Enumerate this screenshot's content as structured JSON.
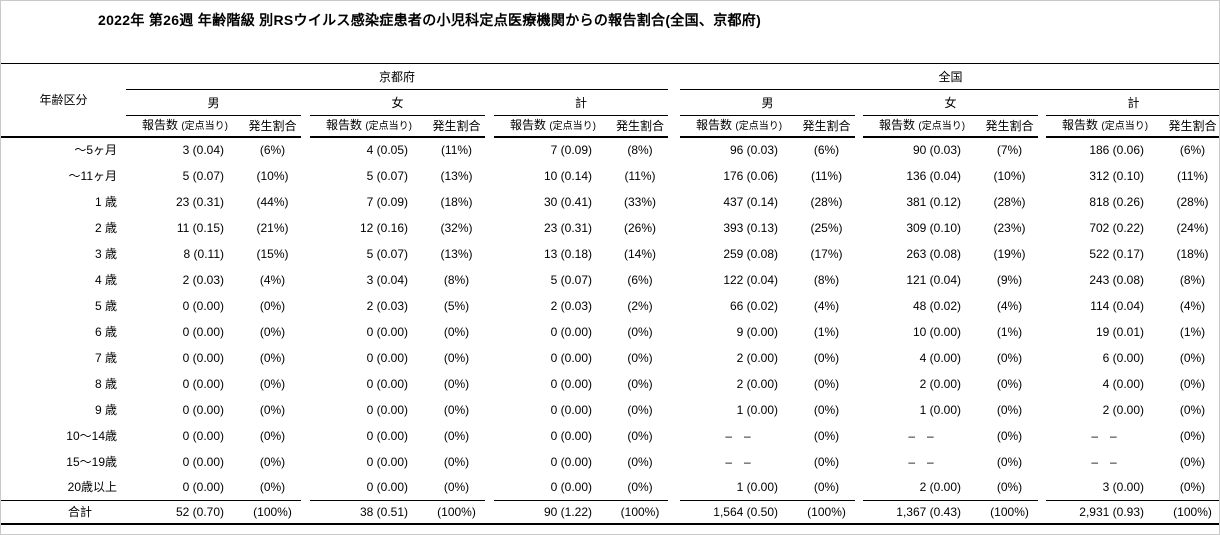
{
  "title": "2022年 第26週 年齢階級 別RSウイルス感染症患者の小児科定点医療機関からの報告割合(全国、京都府)",
  "table": {
    "age_header": "年齢区分",
    "regions": [
      "京都府",
      "全国"
    ],
    "sex_headers": [
      "男",
      "女",
      "計"
    ],
    "col_headers": {
      "reports": "報告数",
      "reports_sub": "(定点当り)",
      "ratio": "発生割合"
    },
    "rows": [
      {
        "age": "～5ヶ月",
        "cells": [
          [
            "3 (0.04)",
            "(6%)"
          ],
          [
            "4 (0.05)",
            "(11%)"
          ],
          [
            "7 (0.09)",
            "(8%)"
          ],
          [
            "96 (0.03)",
            "(6%)"
          ],
          [
            "90 (0.03)",
            "(7%)"
          ],
          [
            "186 (0.06)",
            "(6%)"
          ]
        ]
      },
      {
        "age": "～11ヶ月",
        "cells": [
          [
            "5 (0.07)",
            "(10%)"
          ],
          [
            "5 (0.07)",
            "(13%)"
          ],
          [
            "10 (0.14)",
            "(11%)"
          ],
          [
            "176 (0.06)",
            "(11%)"
          ],
          [
            "136 (0.04)",
            "(10%)"
          ],
          [
            "312 (0.10)",
            "(11%)"
          ]
        ]
      },
      {
        "age": "1 歳",
        "cells": [
          [
            "23 (0.31)",
            "(44%)"
          ],
          [
            "7 (0.09)",
            "(18%)"
          ],
          [
            "30 (0.41)",
            "(33%)"
          ],
          [
            "437 (0.14)",
            "(28%)"
          ],
          [
            "381 (0.12)",
            "(28%)"
          ],
          [
            "818 (0.26)",
            "(28%)"
          ]
        ]
      },
      {
        "age": "2 歳",
        "cells": [
          [
            "11 (0.15)",
            "(21%)"
          ],
          [
            "12 (0.16)",
            "(32%)"
          ],
          [
            "23 (0.31)",
            "(26%)"
          ],
          [
            "393 (0.13)",
            "(25%)"
          ],
          [
            "309 (0.10)",
            "(23%)"
          ],
          [
            "702 (0.22)",
            "(24%)"
          ]
        ]
      },
      {
        "age": "3 歳",
        "cells": [
          [
            "8 (0.11)",
            "(15%)"
          ],
          [
            "5 (0.07)",
            "(13%)"
          ],
          [
            "13 (0.18)",
            "(14%)"
          ],
          [
            "259 (0.08)",
            "(17%)"
          ],
          [
            "263 (0.08)",
            "(19%)"
          ],
          [
            "522 (0.17)",
            "(18%)"
          ]
        ]
      },
      {
        "age": "4 歳",
        "cells": [
          [
            "2 (0.03)",
            "(4%)"
          ],
          [
            "3 (0.04)",
            "(8%)"
          ],
          [
            "5 (0.07)",
            "(6%)"
          ],
          [
            "122 (0.04)",
            "(8%)"
          ],
          [
            "121 (0.04)",
            "(9%)"
          ],
          [
            "243 (0.08)",
            "(8%)"
          ]
        ]
      },
      {
        "age": "5 歳",
        "cells": [
          [
            "0 (0.00)",
            "(0%)"
          ],
          [
            "2 (0.03)",
            "(5%)"
          ],
          [
            "2 (0.03)",
            "(2%)"
          ],
          [
            "66 (0.02)",
            "(4%)"
          ],
          [
            "48 (0.02)",
            "(4%)"
          ],
          [
            "114 (0.04)",
            "(4%)"
          ]
        ]
      },
      {
        "age": "6 歳",
        "cells": [
          [
            "0 (0.00)",
            "(0%)"
          ],
          [
            "0 (0.00)",
            "(0%)"
          ],
          [
            "0 (0.00)",
            "(0%)"
          ],
          [
            "9 (0.00)",
            "(1%)"
          ],
          [
            "10 (0.00)",
            "(1%)"
          ],
          [
            "19 (0.01)",
            "(1%)"
          ]
        ]
      },
      {
        "age": "7 歳",
        "cells": [
          [
            "0 (0.00)",
            "(0%)"
          ],
          [
            "0 (0.00)",
            "(0%)"
          ],
          [
            "0 (0.00)",
            "(0%)"
          ],
          [
            "2 (0.00)",
            "(0%)"
          ],
          [
            "4 (0.00)",
            "(0%)"
          ],
          [
            "6 (0.00)",
            "(0%)"
          ]
        ]
      },
      {
        "age": "8 歳",
        "cells": [
          [
            "0 (0.00)",
            "(0%)"
          ],
          [
            "0 (0.00)",
            "(0%)"
          ],
          [
            "0 (0.00)",
            "(0%)"
          ],
          [
            "2 (0.00)",
            "(0%)"
          ],
          [
            "2 (0.00)",
            "(0%)"
          ],
          [
            "4 (0.00)",
            "(0%)"
          ]
        ]
      },
      {
        "age": "9 歳",
        "cells": [
          [
            "0 (0.00)",
            "(0%)"
          ],
          [
            "0 (0.00)",
            "(0%)"
          ],
          [
            "0 (0.00)",
            "(0%)"
          ],
          [
            "1 (0.00)",
            "(0%)"
          ],
          [
            "1 (0.00)",
            "(0%)"
          ],
          [
            "2 (0.00)",
            "(0%)"
          ]
        ]
      },
      {
        "age": "10～14歳",
        "cells": [
          [
            "0 (0.00)",
            "(0%)"
          ],
          [
            "0 (0.00)",
            "(0%)"
          ],
          [
            "0 (0.00)",
            "(0%)"
          ],
          [
            "–　–",
            "(0%)"
          ],
          [
            "–　–",
            "(0%)"
          ],
          [
            "–　–",
            "(0%)"
          ]
        ]
      },
      {
        "age": "15～19歳",
        "cells": [
          [
            "0 (0.00)",
            "(0%)"
          ],
          [
            "0 (0.00)",
            "(0%)"
          ],
          [
            "0 (0.00)",
            "(0%)"
          ],
          [
            "–　–",
            "(0%)"
          ],
          [
            "–　–",
            "(0%)"
          ],
          [
            "–　–",
            "(0%)"
          ]
        ]
      },
      {
        "age": "20歳以上",
        "cells": [
          [
            "0 (0.00)",
            "(0%)"
          ],
          [
            "0 (0.00)",
            "(0%)"
          ],
          [
            "0 (0.00)",
            "(0%)"
          ],
          [
            "1 (0.00)",
            "(0%)"
          ],
          [
            "2 (0.00)",
            "(0%)"
          ],
          [
            "3 (0.00)",
            "(0%)"
          ]
        ]
      }
    ],
    "total_row": {
      "age": "合計",
      "cells": [
        [
          "52 (0.70)",
          "(100%)"
        ],
        [
          "38 (0.51)",
          "(100%)"
        ],
        [
          "90 (1.22)",
          "(100%)"
        ],
        [
          "1,564 (0.50)",
          "(100%)"
        ],
        [
          "1,367 (0.43)",
          "(100%)"
        ],
        [
          "2,931 (0.93)",
          "(100%)"
        ]
      ]
    }
  },
  "chart_data": {
    "type": "table",
    "title": "2022年 第26週 年齢階級 別RSウイルス感染症患者の小児科定点医療機関からの報告割合(全国、京都府)",
    "row_header": "年齢区分",
    "groups": [
      "京都府 男",
      "京都府 女",
      "京都府 計",
      "全国 男",
      "全国 女",
      "全国 計"
    ],
    "metrics": [
      "報告数",
      "定点当り",
      "発生割合(%)"
    ],
    "rows": [
      {
        "age": "～5ヶ月",
        "values": [
          [
            3,
            0.04,
            6
          ],
          [
            4,
            0.05,
            11
          ],
          [
            7,
            0.09,
            8
          ],
          [
            96,
            0.03,
            6
          ],
          [
            90,
            0.03,
            7
          ],
          [
            186,
            0.06,
            6
          ]
        ]
      },
      {
        "age": "～11ヶ月",
        "values": [
          [
            5,
            0.07,
            10
          ],
          [
            5,
            0.07,
            13
          ],
          [
            10,
            0.14,
            11
          ],
          [
            176,
            0.06,
            11
          ],
          [
            136,
            0.04,
            10
          ],
          [
            312,
            0.1,
            11
          ]
        ]
      },
      {
        "age": "1歳",
        "values": [
          [
            23,
            0.31,
            44
          ],
          [
            7,
            0.09,
            18
          ],
          [
            30,
            0.41,
            33
          ],
          [
            437,
            0.14,
            28
          ],
          [
            381,
            0.12,
            28
          ],
          [
            818,
            0.26,
            28
          ]
        ]
      },
      {
        "age": "2歳",
        "values": [
          [
            11,
            0.15,
            21
          ],
          [
            12,
            0.16,
            32
          ],
          [
            23,
            0.31,
            26
          ],
          [
            393,
            0.13,
            25
          ],
          [
            309,
            0.1,
            23
          ],
          [
            702,
            0.22,
            24
          ]
        ]
      },
      {
        "age": "3歳",
        "values": [
          [
            8,
            0.11,
            15
          ],
          [
            5,
            0.07,
            13
          ],
          [
            13,
            0.18,
            14
          ],
          [
            259,
            0.08,
            17
          ],
          [
            263,
            0.08,
            19
          ],
          [
            522,
            0.17,
            18
          ]
        ]
      },
      {
        "age": "4歳",
        "values": [
          [
            2,
            0.03,
            4
          ],
          [
            3,
            0.04,
            8
          ],
          [
            5,
            0.07,
            6
          ],
          [
            122,
            0.04,
            8
          ],
          [
            121,
            0.04,
            9
          ],
          [
            243,
            0.08,
            8
          ]
        ]
      },
      {
        "age": "5歳",
        "values": [
          [
            0,
            0.0,
            0
          ],
          [
            2,
            0.03,
            5
          ],
          [
            2,
            0.03,
            2
          ],
          [
            66,
            0.02,
            4
          ],
          [
            48,
            0.02,
            4
          ],
          [
            114,
            0.04,
            4
          ]
        ]
      },
      {
        "age": "6歳",
        "values": [
          [
            0,
            0.0,
            0
          ],
          [
            0,
            0.0,
            0
          ],
          [
            0,
            0.0,
            0
          ],
          [
            9,
            0.0,
            1
          ],
          [
            10,
            0.0,
            1
          ],
          [
            19,
            0.01,
            1
          ]
        ]
      },
      {
        "age": "7歳",
        "values": [
          [
            0,
            0.0,
            0
          ],
          [
            0,
            0.0,
            0
          ],
          [
            0,
            0.0,
            0
          ],
          [
            2,
            0.0,
            0
          ],
          [
            4,
            0.0,
            0
          ],
          [
            6,
            0.0,
            0
          ]
        ]
      },
      {
        "age": "8歳",
        "values": [
          [
            0,
            0.0,
            0
          ],
          [
            0,
            0.0,
            0
          ],
          [
            0,
            0.0,
            0
          ],
          [
            2,
            0.0,
            0
          ],
          [
            2,
            0.0,
            0
          ],
          [
            4,
            0.0,
            0
          ]
        ]
      },
      {
        "age": "9歳",
        "values": [
          [
            0,
            0.0,
            0
          ],
          [
            0,
            0.0,
            0
          ],
          [
            0,
            0.0,
            0
          ],
          [
            1,
            0.0,
            0
          ],
          [
            1,
            0.0,
            0
          ],
          [
            2,
            0.0,
            0
          ]
        ]
      },
      {
        "age": "10～14歳",
        "values": [
          [
            0,
            0.0,
            0
          ],
          [
            0,
            0.0,
            0
          ],
          [
            0,
            0.0,
            0
          ],
          [
            null,
            null,
            0
          ],
          [
            null,
            null,
            0
          ],
          [
            null,
            null,
            0
          ]
        ]
      },
      {
        "age": "15～19歳",
        "values": [
          [
            0,
            0.0,
            0
          ],
          [
            0,
            0.0,
            0
          ],
          [
            0,
            0.0,
            0
          ],
          [
            null,
            null,
            0
          ],
          [
            null,
            null,
            0
          ],
          [
            null,
            null,
            0
          ]
        ]
      },
      {
        "age": "20歳以上",
        "values": [
          [
            0,
            0.0,
            0
          ],
          [
            0,
            0.0,
            0
          ],
          [
            0,
            0.0,
            0
          ],
          [
            1,
            0.0,
            0
          ],
          [
            2,
            0.0,
            0
          ],
          [
            3,
            0.0,
            0
          ]
        ]
      },
      {
        "age": "合計",
        "values": [
          [
            52,
            0.7,
            100
          ],
          [
            38,
            0.51,
            100
          ],
          [
            90,
            1.22,
            100
          ],
          [
            1564,
            0.5,
            100
          ],
          [
            1367,
            0.43,
            100
          ],
          [
            2931,
            0.93,
            100
          ]
        ]
      }
    ]
  }
}
